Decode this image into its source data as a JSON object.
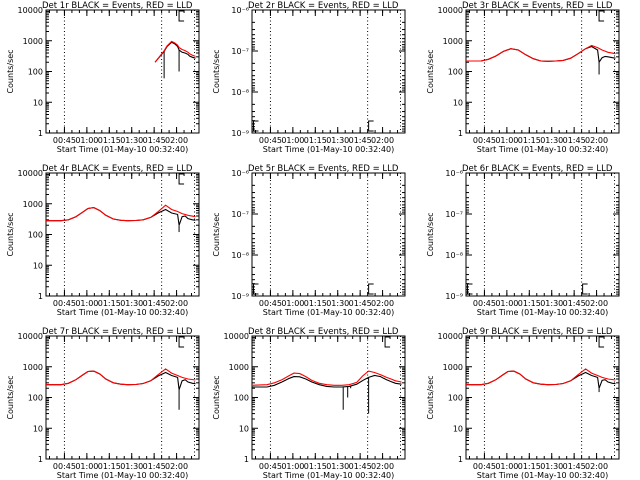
{
  "figure": {
    "xlabel": "Start Time (01-May-10 00:32:40)",
    "ylabel": "Counts/sec",
    "x_tick_labels": [
      "00:45",
      "01:00",
      "01:15",
      "01:30",
      "01:45",
      "02:00"
    ]
  },
  "colors": {
    "events": "#000000",
    "lld": "#ff0000",
    "axes": "#000000"
  },
  "chart_data": [
    {
      "type": "line",
      "title": "Det 1r BLACK = Events, RED = LLD",
      "yscale": "log",
      "ylim": [
        1,
        10000
      ],
      "xlim": [
        "00:32:40",
        "02:15:00"
      ],
      "y_tick_labels": [
        "1",
        "10",
        "100",
        "1000",
        "10000"
      ],
      "vlines": [
        "00:45",
        "01:50",
        "02:12"
      ],
      "series": [
        {
          "name": "Events",
          "color": "#000000",
          "x_min": [
            73,
            79,
            81,
            84,
            86,
            88,
            89,
            91,
            93,
            95,
            96,
            98,
            100
          ],
          "y": [
            200,
            450,
            650,
            900,
            800,
            650,
            500,
            420,
            400,
            360,
            320,
            290,
            270
          ],
          "spikes": [
            {
              "x_min": 79,
              "y": 60
            },
            {
              "x_min": 89,
              "y": 100
            }
          ]
        },
        {
          "name": "LLD",
          "color": "#ff0000",
          "x_min": [
            73,
            79,
            81,
            84,
            86,
            88,
            89,
            91,
            93,
            95,
            96,
            98,
            100
          ],
          "y": [
            200,
            470,
            680,
            950,
            850,
            720,
            600,
            520,
            480,
            420,
            380,
            340,
            310
          ]
        }
      ],
      "markers": [
        {
          "x_min": 89,
          "y": 10000,
          "label": "E"
        }
      ]
    },
    {
      "type": "line",
      "title": "Det 2r BLACK = Events, RED = LLD",
      "yscale": "log",
      "ylim": [
        1e-06,
        1e-09
      ],
      "xlim": [
        "00:32:40",
        "02:15:00"
      ],
      "y_tick_labels": [
        "10⁻⁹",
        "10⁻⁸",
        "10⁻⁷",
        "10⁻⁶"
      ],
      "vlines": [
        "00:45",
        "01:50",
        "02:12"
      ],
      "series": [],
      "markers": [
        {
          "x_min": 1,
          "y": 1e-06,
          "label": "E"
        },
        {
          "x_min": 78,
          "y": 1e-06,
          "label": "E"
        }
      ]
    },
    {
      "type": "line",
      "title": "Det 3r BLACK = Events, RED = LLD",
      "yscale": "log",
      "ylim": [
        1,
        10000
      ],
      "xlim": [
        "00:32:40",
        "02:15:00"
      ],
      "y_tick_labels": [
        "1",
        "10",
        "100",
        "1000",
        "10000"
      ],
      "vlines": [
        "00:45",
        "01:50",
        "02:12"
      ],
      "series": [
        {
          "name": "Events",
          "color": "#000000",
          "x_min": [
            0,
            10,
            15,
            20,
            25,
            30,
            35,
            40,
            45,
            50,
            55,
            60,
            65,
            70,
            75,
            80,
            84,
            88,
            89,
            91,
            93,
            95,
            98,
            100
          ],
          "y": [
            220,
            220,
            250,
            320,
            450,
            550,
            500,
            350,
            260,
            220,
            215,
            220,
            230,
            270,
            380,
            550,
            650,
            500,
            200,
            280,
            310,
            300,
            280,
            270
          ],
          "spikes": [
            {
              "x_min": 89,
              "y": 80
            }
          ]
        },
        {
          "name": "LLD",
          "color": "#ff0000",
          "x_min": [
            0,
            10,
            15,
            20,
            25,
            30,
            35,
            40,
            45,
            50,
            55,
            60,
            65,
            70,
            75,
            80,
            84,
            88,
            91,
            95,
            100
          ],
          "y": [
            220,
            220,
            250,
            320,
            450,
            550,
            500,
            350,
            260,
            220,
            215,
            220,
            230,
            270,
            380,
            550,
            700,
            600,
            500,
            420,
            380
          ]
        }
      ],
      "markers": [
        {
          "x_min": 89,
          "y": 10000,
          "label": "E"
        }
      ]
    },
    {
      "type": "line",
      "title": "Det 4r BLACK = Events, RED = LLD",
      "yscale": "log",
      "ylim": [
        1,
        10000
      ],
      "xlim": [
        "00:32:40",
        "02:15:00"
      ],
      "y_tick_labels": [
        "1",
        "10",
        "100",
        "1000",
        "10000"
      ],
      "vlines": [
        "00:45",
        "01:50",
        "02:12"
      ],
      "series": [
        {
          "name": "Events",
          "color": "#000000",
          "x_min": [
            0,
            10,
            15,
            20,
            25,
            28,
            32,
            36,
            40,
            45,
            50,
            55,
            60,
            65,
            70,
            75,
            80,
            84,
            88,
            89,
            91,
            93,
            95,
            98,
            100
          ],
          "y": [
            280,
            280,
            300,
            380,
            550,
            700,
            750,
            600,
            420,
            320,
            290,
            280,
            285,
            300,
            360,
            500,
            650,
            500,
            450,
            200,
            380,
            400,
            330,
            300,
            290
          ],
          "spikes": [
            {
              "x_min": 89,
              "y": 120
            }
          ]
        },
        {
          "name": "LLD",
          "color": "#ff0000",
          "x_min": [
            0,
            10,
            15,
            20,
            25,
            28,
            32,
            36,
            40,
            45,
            50,
            55,
            60,
            65,
            70,
            75,
            80,
            84,
            88,
            91,
            95,
            100
          ],
          "y": [
            280,
            280,
            300,
            380,
            550,
            700,
            750,
            600,
            420,
            320,
            290,
            280,
            285,
            300,
            360,
            550,
            900,
            650,
            560,
            480,
            420,
            380
          ]
        }
      ],
      "markers": [
        {
          "x_min": 89,
          "y": 10000,
          "label": "E"
        }
      ]
    },
    {
      "type": "line",
      "title": "Det 5r BLACK = Events, RED = LLD",
      "yscale": "log",
      "ylim": [
        1e-06,
        1e-09
      ],
      "xlim": [
        "00:32:40",
        "02:15:00"
      ],
      "y_tick_labels": [
        "10⁻⁹",
        "10⁻⁸",
        "10⁻⁷",
        "10⁻⁶"
      ],
      "vlines": [
        "00:45",
        "01:50",
        "02:12"
      ],
      "series": [],
      "markers": [
        {
          "x_min": 1,
          "y": 1e-06,
          "label": "E"
        },
        {
          "x_min": 78,
          "y": 1e-06,
          "label": "E"
        }
      ]
    },
    {
      "type": "line",
      "title": "Det 6r BLACK = Events, RED = LLD",
      "yscale": "log",
      "ylim": [
        1e-06,
        1e-09
      ],
      "xlim": [
        "00:32:40",
        "02:15:00"
      ],
      "y_tick_labels": [
        "10⁻⁹",
        "10⁻⁸",
        "10⁻⁷",
        "10⁻⁶"
      ],
      "vlines": [
        "00:45",
        "01:50",
        "02:12"
      ],
      "series": [],
      "markers": [
        {
          "x_min": 1,
          "y": 1e-06,
          "label": "E"
        },
        {
          "x_min": 78,
          "y": 1e-06,
          "label": "E"
        }
      ]
    },
    {
      "type": "line",
      "title": "Det 7r BLACK = Events, RED = LLD",
      "yscale": "log",
      "ylim": [
        1,
        10000
      ],
      "xlim": [
        "00:32:40",
        "02:15:00"
      ],
      "y_tick_labels": [
        "1",
        "10",
        "100",
        "1000",
        "10000"
      ],
      "vlines": [
        "00:45",
        "01:50",
        "02:12"
      ],
      "series": [
        {
          "name": "Events",
          "color": "#000000",
          "x_min": [
            0,
            10,
            15,
            20,
            25,
            28,
            32,
            36,
            40,
            45,
            50,
            55,
            60,
            65,
            70,
            75,
            80,
            84,
            88,
            89,
            91,
            93,
            95,
            98,
            100
          ],
          "y": [
            260,
            260,
            290,
            380,
            560,
            700,
            720,
            580,
            400,
            300,
            270,
            260,
            265,
            285,
            350,
            500,
            650,
            520,
            450,
            180,
            350,
            380,
            320,
            290,
            280
          ],
          "spikes": [
            {
              "x_min": 89,
              "y": 40
            }
          ]
        },
        {
          "name": "LLD",
          "color": "#ff0000",
          "x_min": [
            0,
            10,
            15,
            20,
            25,
            28,
            32,
            36,
            40,
            45,
            50,
            55,
            60,
            65,
            70,
            75,
            80,
            84,
            88,
            91,
            95,
            100
          ],
          "y": [
            260,
            260,
            290,
            380,
            560,
            700,
            720,
            580,
            400,
            300,
            270,
            260,
            265,
            285,
            350,
            550,
            850,
            620,
            520,
            450,
            400,
            370
          ]
        }
      ],
      "markers": [
        {
          "x_min": 89,
          "y": 10000,
          "label": "E"
        }
      ]
    },
    {
      "type": "line",
      "title": "Det 8r BLACK = Events, RED = LLD",
      "yscale": "log",
      "ylim": [
        1,
        10000
      ],
      "xlim": [
        "00:32:40",
        "02:15:00"
      ],
      "y_tick_labels": [
        "1",
        "10",
        "100",
        "1000",
        "10000"
      ],
      "vlines": [
        "00:45",
        "01:50",
        "02:12"
      ],
      "series": [
        {
          "name": "Events",
          "color": "#000000",
          "x_min": [
            0,
            10,
            15,
            20,
            25,
            28,
            32,
            36,
            40,
            45,
            50,
            55,
            60,
            65,
            70,
            75,
            78,
            82,
            86,
            88,
            90,
            93,
            96,
            100
          ],
          "y": [
            220,
            220,
            250,
            320,
            420,
            480,
            470,
            400,
            320,
            260,
            230,
            220,
            220,
            230,
            270,
            380,
            450,
            520,
            480,
            420,
            380,
            330,
            290,
            270
          ],
          "spikes": [
            {
              "x_min": 61,
              "y": 40
            },
            {
              "x_min": 64,
              "y": 100
            },
            {
              "x_min": 66,
              "y": 200
            },
            {
              "x_min": 78,
              "y": 30
            }
          ]
        },
        {
          "name": "LLD",
          "color": "#ff0000",
          "x_min": [
            0,
            10,
            15,
            20,
            25,
            28,
            32,
            36,
            40,
            45,
            50,
            55,
            60,
            65,
            70,
            74,
            78,
            82,
            86,
            90,
            93,
            96,
            100
          ],
          "y": [
            250,
            260,
            300,
            380,
            520,
            620,
            600,
            480,
            360,
            290,
            260,
            250,
            250,
            260,
            310,
            500,
            720,
            650,
            550,
            450,
            400,
            350,
            320
          ]
        }
      ],
      "markers": [
        {
          "x_min": 89,
          "y": 10000,
          "label": "E"
        }
      ]
    },
    {
      "type": "line",
      "title": "Det 9r BLACK = Events, RED = LLD",
      "yscale": "log",
      "ylim": [
        1,
        10000
      ],
      "xlim": [
        "00:32:40",
        "02:15:00"
      ],
      "y_tick_labels": [
        "1",
        "10",
        "100",
        "1000",
        "10000"
      ],
      "vlines": [
        "00:45",
        "01:50",
        "02:12"
      ],
      "series": [
        {
          "name": "Events",
          "color": "#000000",
          "x_min": [
            0,
            10,
            15,
            20,
            25,
            28,
            32,
            36,
            40,
            45,
            50,
            55,
            60,
            65,
            70,
            75,
            80,
            84,
            88,
            89,
            91,
            93,
            95,
            98,
            100
          ],
          "y": [
            260,
            260,
            290,
            380,
            560,
            700,
            720,
            580,
            400,
            300,
            270,
            260,
            265,
            285,
            350,
            500,
            650,
            520,
            450,
            200,
            360,
            380,
            320,
            290,
            280
          ],
          "spikes": [
            {
              "x_min": 89,
              "y": 150
            }
          ]
        },
        {
          "name": "LLD",
          "color": "#ff0000",
          "x_min": [
            0,
            10,
            15,
            20,
            25,
            28,
            32,
            36,
            40,
            45,
            50,
            55,
            60,
            65,
            70,
            75,
            80,
            84,
            88,
            91,
            95,
            100
          ],
          "y": [
            260,
            260,
            290,
            380,
            560,
            700,
            720,
            580,
            400,
            300,
            270,
            260,
            265,
            285,
            350,
            550,
            850,
            620,
            520,
            450,
            400,
            370
          ]
        }
      ],
      "markers": [
        {
          "x_min": 89,
          "y": 10000,
          "label": "E"
        }
      ]
    }
  ]
}
